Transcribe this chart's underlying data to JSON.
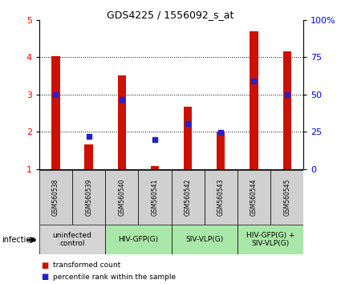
{
  "title": "GDS4225 / 1556092_s_at",
  "samples": [
    "GSM560538",
    "GSM560539",
    "GSM560540",
    "GSM560541",
    "GSM560542",
    "GSM560543",
    "GSM560544",
    "GSM560545"
  ],
  "bar_values": [
    4.02,
    1.65,
    3.5,
    1.08,
    2.68,
    2.0,
    4.7,
    4.15
  ],
  "blue_values": [
    3.0,
    1.88,
    2.86,
    1.78,
    2.22,
    1.98,
    3.35,
    3.0
  ],
  "groups": [
    {
      "label": "uninfected\ncontrol",
      "start": 0,
      "end": 2,
      "color": "#d4d4d4"
    },
    {
      "label": "HIV-GFP(G)",
      "start": 2,
      "end": 4,
      "color": "#aae8aa"
    },
    {
      "label": "SIV-VLP(G)",
      "start": 4,
      "end": 6,
      "color": "#aae8aa"
    },
    {
      "label": "HIV-GFP(G) +\nSIV-VLP(G)",
      "start": 6,
      "end": 8,
      "color": "#aae8aa"
    }
  ],
  "ylim_left": [
    1,
    5
  ],
  "ylim_right": [
    0,
    100
  ],
  "yticks_left": [
    1,
    2,
    3,
    4,
    5
  ],
  "yticks_right": [
    0,
    25,
    50,
    75,
    100
  ],
  "ytick_labels_right": [
    "0",
    "25",
    "50",
    "75",
    "100%"
  ],
  "bar_color": "#cc1100",
  "blue_color": "#2222cc",
  "bar_width": 0.25,
  "sample_box_color": "#d0d0d0",
  "infection_label": "infection",
  "legend_red": "transformed count",
  "legend_blue": "percentile rank within the sample"
}
